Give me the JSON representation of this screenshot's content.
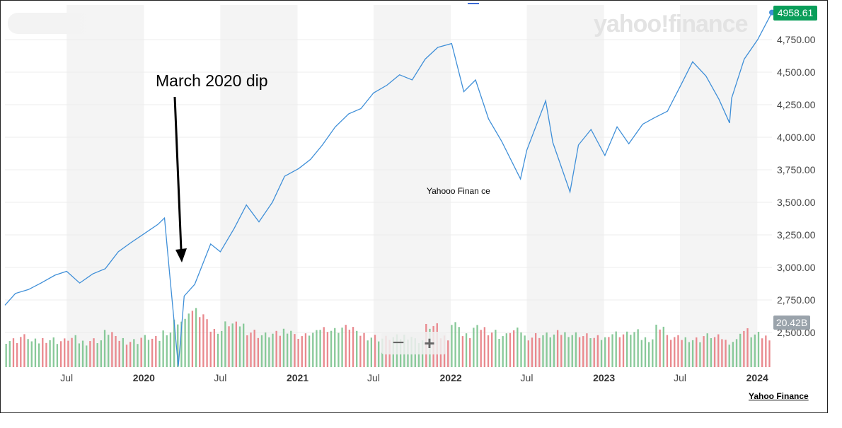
{
  "chart_data": {
    "type": "line",
    "watermark": "yahoo!finance",
    "annotation": "March 2020 dip",
    "center_label": "Yahooo Finan ce",
    "source": "Yahoo Finance",
    "last_price": "4958.61",
    "volume_badge": "20.42B",
    "yticks": [
      "4,750.00",
      "4,500.00",
      "4,250.00",
      "4,000.00",
      "3,750.00",
      "3,500.00",
      "3,250.00",
      "3,000.00",
      "2,750.00",
      "2,500.00"
    ],
    "ylim": [
      2250,
      5000
    ],
    "xlim": [
      "2019-02-04",
      "2024-02-05"
    ],
    "xticks": [
      {
        "label": "Jul",
        "date": "2019-07-01",
        "year": false
      },
      {
        "label": "2020",
        "date": "2020-01-01",
        "year": true
      },
      {
        "label": "Jul",
        "date": "2020-07-01",
        "year": false
      },
      {
        "label": "2021",
        "date": "2021-01-01",
        "year": true
      },
      {
        "label": "Jul",
        "date": "2021-07-01",
        "year": false
      },
      {
        "label": "2022",
        "date": "2022-01-01",
        "year": true
      },
      {
        "label": "Jul",
        "date": "2022-07-01",
        "year": false
      },
      {
        "label": "2023",
        "date": "2023-01-01",
        "year": true
      },
      {
        "label": "Jul",
        "date": "2023-07-01",
        "year": false
      },
      {
        "label": "2024",
        "date": "2024-01-01",
        "year": true
      }
    ],
    "series": [
      {
        "x": [
          "2019-02-04",
          "2019-03-01",
          "2019-04-01",
          "2019-05-01",
          "2019-06-03",
          "2019-07-01",
          "2019-08-01",
          "2019-09-01",
          "2019-10-01",
          "2019-11-01",
          "2019-12-01",
          "2020-01-02",
          "2020-02-03",
          "2020-02-19",
          "2020-03-02",
          "2020-03-23",
          "2020-04-06",
          "2020-05-01",
          "2020-06-08",
          "2020-07-01",
          "2020-08-03",
          "2020-09-01",
          "2020-10-01",
          "2020-11-02",
          "2020-12-01",
          "2021-01-04",
          "2021-02-01",
          "2021-03-01",
          "2021-04-01",
          "2021-05-03",
          "2021-06-01",
          "2021-07-01",
          "2021-08-02",
          "2021-09-01",
          "2021-10-01",
          "2021-11-01",
          "2021-12-01",
          "2022-01-03",
          "2022-02-01",
          "2022-03-01",
          "2022-04-01",
          "2022-05-02",
          "2022-06-16",
          "2022-07-01",
          "2022-08-15",
          "2022-09-01",
          "2022-10-12",
          "2022-11-01",
          "2022-12-01",
          "2023-01-03",
          "2023-02-01",
          "2023-03-01",
          "2023-04-03",
          "2023-05-01",
          "2023-06-01",
          "2023-07-03",
          "2023-07-31",
          "2023-09-01",
          "2023-10-02",
          "2023-10-27",
          "2023-11-01",
          "2023-12-01",
          "2024-01-02",
          "2024-02-05"
        ],
        "values": [
          2710,
          2800,
          2830,
          2880,
          2940,
          2970,
          2880,
          2950,
          2990,
          3120,
          3190,
          3260,
          3330,
          3380,
          2960,
          2240,
          2780,
          2870,
          3180,
          3120,
          3300,
          3480,
          3350,
          3500,
          3700,
          3760,
          3830,
          3940,
          4080,
          4180,
          4220,
          4340,
          4400,
          4480,
          4440,
          4600,
          4690,
          4720,
          4350,
          4440,
          4140,
          3970,
          3680,
          3900,
          4280,
          3960,
          3580,
          3940,
          4060,
          3860,
          4080,
          3950,
          4100,
          4150,
          4200,
          4400,
          4580,
          4470,
          4290,
          4110,
          4300,
          4600,
          4750,
          4958.61
        ]
      }
    ],
    "volume": {
      "series_colors": {
        "up": "#88c999",
        "down": "#e9898e"
      },
      "values_B": [
        5.2,
        5.6,
        5.0,
        5.3,
        5.1,
        5.4,
        5.0,
        5.2,
        6.1,
        5.3,
        5.1,
        5.5,
        5.3,
        6.2,
        7.4,
        8.6,
        8.1,
        6.3,
        7.1,
        7.0,
        6.2,
        5.8,
        5.9,
        6.4,
        5.7,
        6.0,
        6.6,
        6.4,
        6.7,
        5.9,
        5.6,
        5.4,
        5.5,
        5.7,
        5.2,
        6.8,
        5.6,
        7.1,
        5.7,
        6.6,
        6.2,
        5.7,
        6.3,
        5.6,
        5.8,
        5.8,
        6.0,
        5.9,
        5.7,
        5.4,
        6.0,
        5.9,
        6.1,
        5.4,
        6.8,
        5.5,
        5.4,
        5.3,
        5.7,
        5.5,
        5.1,
        6.3,
        5.8,
        5.6
      ],
      "up": [
        true,
        false,
        true,
        false,
        true,
        true,
        false,
        true,
        false,
        true,
        true,
        false,
        true,
        false,
        false,
        false,
        true,
        true,
        false,
        true,
        true,
        false,
        true,
        true,
        false,
        false,
        true,
        true,
        false,
        true,
        true,
        false,
        true,
        false,
        true,
        false,
        true,
        false,
        true,
        false,
        false,
        false,
        true,
        false,
        true,
        true,
        false,
        true,
        false,
        true,
        true,
        false,
        true,
        true,
        true,
        false,
        true,
        false,
        false,
        true,
        true,
        true,
        false,
        true
      ]
    },
    "colors": {
      "line": "#3f8fd8",
      "band": "#f4f4f4",
      "grid": "#ececec"
    }
  }
}
